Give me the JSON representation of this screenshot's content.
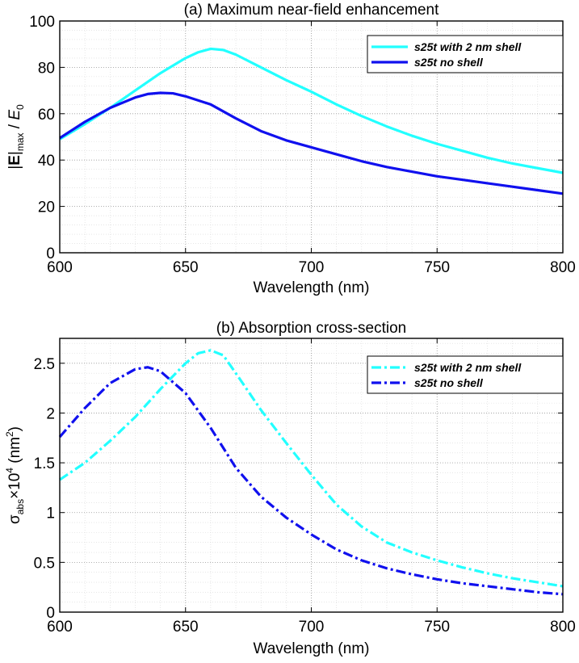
{
  "chart_data": [
    {
      "id": "a",
      "type": "line",
      "title": "(a) Maximum near-field enhancement",
      "xlabel": "Wavelength (nm)",
      "ylabel_parts": [
        "|",
        "E",
        "|",
        "max",
        " / ",
        "E",
        "0"
      ],
      "xlim": [
        600,
        800
      ],
      "ylim": [
        0,
        100
      ],
      "xticks": [
        600,
        650,
        700,
        750,
        800
      ],
      "yticks": [
        0,
        20,
        40,
        60,
        80,
        100
      ],
      "ytick_labels": [
        "0",
        "20",
        "40",
        "60",
        "80",
        "100"
      ],
      "grid": true,
      "legend_position": "top-right",
      "series": [
        {
          "name": "s25t with 2 nm shell",
          "color": "#22ffff",
          "style": "solid",
          "x": [
            600,
            610,
            620,
            630,
            640,
            650,
            655,
            660,
            665,
            670,
            680,
            690,
            700,
            710,
            720,
            730,
            740,
            750,
            760,
            770,
            780,
            790,
            800
          ],
          "y": [
            49,
            55.5,
            62.5,
            70,
            77.5,
            84,
            86.5,
            88,
            87.5,
            85.5,
            80,
            74.5,
            69.5,
            64,
            59,
            54.5,
            50.5,
            47,
            44,
            41,
            38.5,
            36.5,
            34.5
          ]
        },
        {
          "name": "s25t no shell",
          "color": "#1010ee",
          "style": "solid",
          "x": [
            600,
            610,
            620,
            630,
            635,
            640,
            645,
            650,
            660,
            670,
            680,
            690,
            700,
            710,
            720,
            730,
            740,
            750,
            760,
            770,
            780,
            790,
            800
          ],
          "y": [
            49.5,
            56.5,
            62.5,
            67,
            68.5,
            69,
            68.8,
            67.5,
            64,
            58,
            52.5,
            48.5,
            45.5,
            42.5,
            39.5,
            37,
            35,
            33,
            31.5,
            30,
            28.5,
            27,
            25.5
          ]
        }
      ]
    },
    {
      "id": "b",
      "type": "line",
      "title": "(b) Absorption cross-section",
      "xlabel": "Wavelength (nm)",
      "ylabel_parts": [
        "σ",
        "abs",
        "×10",
        "4",
        " (nm",
        "2",
        ")"
      ],
      "xlim": [
        600,
        800
      ],
      "ylim": [
        0,
        2.75
      ],
      "xticks": [
        600,
        650,
        700,
        750,
        800
      ],
      "yticks": [
        0,
        0.5,
        1,
        1.5,
        2,
        2.5
      ],
      "ytick_labels": [
        "0",
        "0.5",
        "1",
        "1.5",
        "2",
        "2.5"
      ],
      "grid": true,
      "legend_position": "top-right",
      "series": [
        {
          "name": "s25t with 2 nm shell",
          "color": "#22ffff",
          "style": "dash-dot",
          "x": [
            600,
            610,
            620,
            630,
            640,
            650,
            655,
            660,
            665,
            670,
            680,
            690,
            700,
            710,
            720,
            730,
            740,
            750,
            760,
            770,
            780,
            790,
            800
          ],
          "y": [
            1.33,
            1.5,
            1.72,
            1.96,
            2.24,
            2.5,
            2.6,
            2.63,
            2.58,
            2.4,
            2.03,
            1.7,
            1.38,
            1.08,
            0.86,
            0.7,
            0.6,
            0.52,
            0.45,
            0.39,
            0.34,
            0.3,
            0.26
          ]
        },
        {
          "name": "s25t no shell",
          "color": "#1010ee",
          "style": "dash-dot",
          "x": [
            600,
            610,
            620,
            630,
            635,
            640,
            650,
            660,
            670,
            680,
            690,
            700,
            710,
            720,
            730,
            740,
            750,
            760,
            770,
            780,
            790,
            800
          ],
          "y": [
            1.76,
            2.05,
            2.3,
            2.44,
            2.46,
            2.42,
            2.2,
            1.85,
            1.45,
            1.16,
            0.95,
            0.78,
            0.63,
            0.52,
            0.44,
            0.38,
            0.33,
            0.29,
            0.26,
            0.23,
            0.2,
            0.18
          ]
        }
      ]
    }
  ]
}
